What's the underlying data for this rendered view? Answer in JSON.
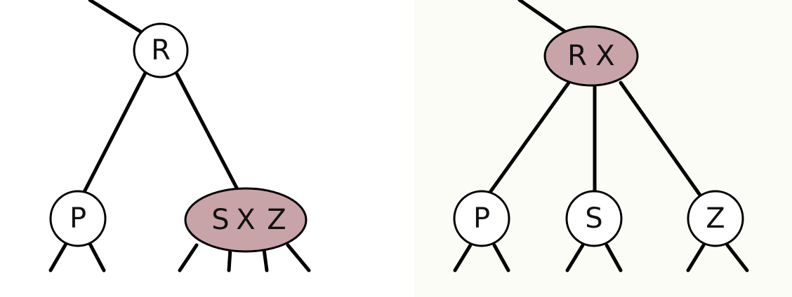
{
  "colors": {
    "left_background": "#ffffff",
    "right_background": "#fcfcf6",
    "highlight_fill": "#c8a3a8",
    "dark_red_text": "#7a1426"
  },
  "left_tree": {
    "root": {
      "label": "R"
    },
    "left_child": {
      "label": "P"
    },
    "right_child": {
      "keys": [
        "S",
        "X",
        "Z"
      ]
    }
  },
  "right_tree": {
    "root": {
      "keys": [
        "R",
        "X"
      ]
    },
    "left_child": {
      "label": "P"
    },
    "middle_child": {
      "label": "S"
    },
    "right_child": {
      "label": "Z"
    }
  }
}
